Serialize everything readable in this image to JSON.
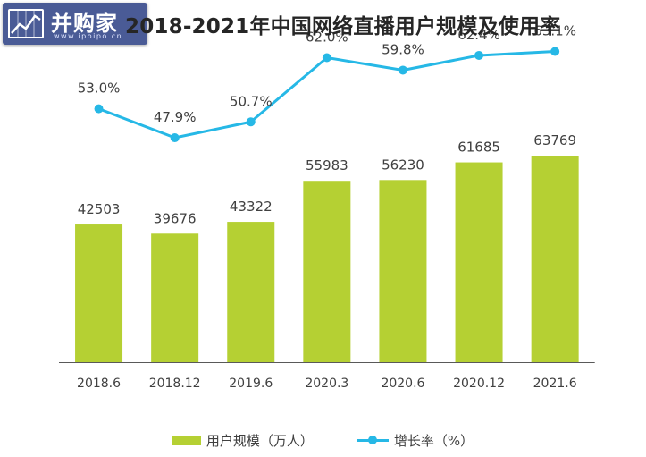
{
  "header": {
    "logo_text": "并购家",
    "logo_url": "www.ipoipo.cn",
    "title": "2018-2021年中国网络直播用户规模及使用率"
  },
  "colors": {
    "bar": "#b5d033",
    "line": "#26b8e6",
    "axis": "#595959",
    "label": "#404040"
  },
  "chart_data": {
    "type": "bar",
    "title": "2018-2021年中国网络直播用户规模及使用率",
    "categories": [
      "2018.6",
      "2018.12",
      "2019.6",
      "2020.3",
      "2020.6",
      "2020.12",
      "2021.6"
    ],
    "series": [
      {
        "name": "用户规模（万人）",
        "type": "bar",
        "values": [
          42503,
          39676,
          43322,
          55983,
          56230,
          61685,
          63769
        ]
      },
      {
        "name": "增长率（%）",
        "type": "line",
        "values": [
          53.0,
          47.9,
          50.7,
          62.0,
          59.8,
          62.4,
          63.1
        ]
      }
    ],
    "bar_labels": [
      "42503",
      "39676",
      "43322",
      "55983",
      "56230",
      "61685",
      "63769"
    ],
    "line_labels": [
      "53.0%",
      "47.9%",
      "50.7%",
      "62.0%",
      "59.8%",
      "62.4%",
      "63.1%"
    ],
    "grid": false,
    "legend_position": "bottom"
  },
  "legend": {
    "bar_label": "用户规模（万人）",
    "line_label": "增长率（%）"
  }
}
